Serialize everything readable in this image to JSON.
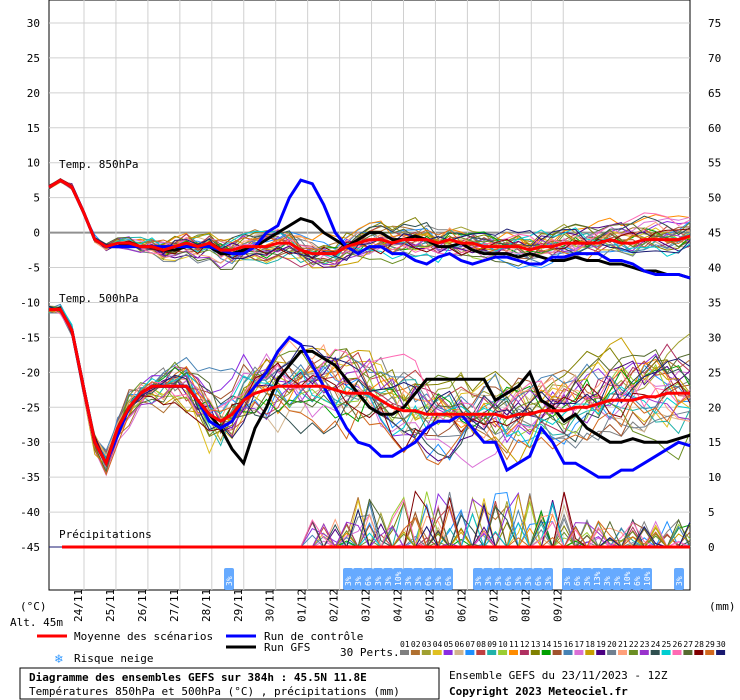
{
  "chart_data": {
    "type": "line",
    "title": "Diagramme des ensembles GEFS sur 384h : 45.5N 11.8E",
    "subtitle": "Températures 850hPa et 500hPa (°C) , précipitations (mm)",
    "run_info": "Ensemble GEFS du 23/11/2023 - 12Z",
    "copyright": "Copyright 2023 Meteociel.fr",
    "altitude": "Alt. 45m",
    "y_left_unit": "(°C)",
    "y_right_unit": "(mm)",
    "y_left_ticks": [
      "30",
      "25",
      "20",
      "15",
      "10",
      "5",
      "0",
      "-5",
      "-10",
      "-15",
      "-20",
      "-25",
      "-30",
      "-35",
      "-40",
      "-45"
    ],
    "y_right_ticks": [
      "75",
      "70",
      "65",
      "60",
      "55",
      "50",
      "45",
      "40",
      "35",
      "30",
      "25",
      "20",
      "15",
      "10",
      "5",
      "0"
    ],
    "ylim_left": [
      -45,
      30
    ],
    "ylim_right": [
      0,
      75
    ],
    "x_ticks": [
      "24/11",
      "25/11",
      "26/11",
      "27/11",
      "28/11",
      "29/11",
      "30/11",
      "01/12",
      "02/12",
      "03/12",
      "04/12",
      "05/12",
      "06/12",
      "07/12",
      "08/12",
      "09/12"
    ],
    "panel_labels": {
      "t850": "Temp. 850hPa",
      "t500": "Temp. 500hPa",
      "precip": "Précipitations"
    },
    "series": [
      {
        "name": "Moyenne des scénarios",
        "color": "#ff0000",
        "t850": [
          6.5,
          7.5,
          6.5,
          3,
          -1,
          -2,
          -1.5,
          -1.5,
          -2,
          -2,
          -2.5,
          -2,
          -1.5,
          -2,
          -1.5,
          -2.5,
          -2.5,
          -2,
          -2,
          -2,
          -1.5,
          -1.5,
          -2.5,
          -3,
          -3,
          -3,
          -2,
          -1.5,
          -1,
          -1,
          -1.5,
          -1,
          -1,
          -1,
          -1.5,
          -1,
          -1.5,
          -1.5,
          -2,
          -2,
          -2,
          -2,
          -2.5,
          -2,
          -2,
          -1.5,
          -1.5,
          -1.5,
          -1.5,
          -1,
          -1.5,
          -1.5,
          -1,
          -1,
          -1,
          -1,
          -0.5
        ],
        "t500": [
          -11,
          -11,
          -14,
          -22,
          -30,
          -33,
          -28,
          -25,
          -23,
          -22,
          -22,
          -22,
          -22,
          -24,
          -26,
          -27,
          -26,
          -24,
          -23,
          -22.5,
          -22,
          -22,
          -22,
          -22,
          -22,
          -22.5,
          -23,
          -23,
          -23,
          -24,
          -25,
          -25.5,
          -25.5,
          -26,
          -26,
          -26,
          -26,
          -26,
          -26,
          -26,
          -26.5,
          -26,
          -26,
          -25.5,
          -25.5,
          -25.5,
          -25,
          -25,
          -24.5,
          -24,
          -24,
          -24,
          -23.5,
          -23.5,
          -23,
          -23,
          -23
        ]
      },
      {
        "name": "Run de contrôle",
        "color": "#0000ff",
        "t850": [
          6.5,
          7.5,
          6.5,
          3,
          -1,
          -2,
          -2,
          -2,
          -2,
          -2,
          -2,
          -2,
          -2,
          -2,
          -2,
          -2.5,
          -3,
          -3,
          -2,
          0,
          1,
          5,
          7.5,
          7,
          4,
          0,
          -2,
          -3,
          -2,
          -2,
          -3,
          -3,
          -4,
          -4.5,
          -3.5,
          -3,
          -4,
          -4.5,
          -4,
          -3.5,
          -3.5,
          -4,
          -4.5,
          -4.5,
          -3.5,
          -3.5,
          -3,
          -3,
          -3,
          -4,
          -4,
          -4.5,
          -5.5,
          -6,
          -6,
          -6,
          -6.5
        ],
        "t500": [
          -11,
          -11,
          -14,
          -22,
          -30,
          -33,
          -29,
          -25,
          -23,
          -22,
          -22,
          -22,
          -22,
          -24,
          -27,
          -28,
          -27,
          -24,
          -22,
          -20,
          -17,
          -15,
          -16,
          -19,
          -22,
          -25,
          -28,
          -30,
          -30.5,
          -32,
          -32,
          -31,
          -30,
          -28,
          -27,
          -27,
          -26,
          -28,
          -30,
          -30,
          -34,
          -33,
          -32,
          -28,
          -30,
          -33,
          -33,
          -34,
          -35,
          -35,
          -34,
          -34,
          -33,
          -32,
          -31,
          -30,
          -30.5
        ]
      },
      {
        "name": "Run GFS",
        "color": "#000000",
        "t850": [
          6.5,
          7.5,
          6.5,
          3,
          -1,
          -2,
          -2,
          -1.5,
          -2,
          -2,
          -2.5,
          -2.5,
          -2,
          -2,
          -2,
          -3,
          -3,
          -2.5,
          -2,
          -1,
          0,
          1,
          2,
          1.5,
          0,
          -1,
          -2,
          -1,
          0,
          0,
          -1,
          -1,
          -0.5,
          -1,
          -2,
          -2,
          -1.5,
          -2.5,
          -3,
          -3,
          -3,
          -3.5,
          -3,
          -3.5,
          -4,
          -4,
          -3.5,
          -4,
          -4,
          -4.5,
          -4.5,
          -5,
          -5.5,
          -5.5,
          -6,
          -6,
          -6.5
        ],
        "t500": [
          -11,
          -11,
          -14,
          -22,
          -30,
          -33,
          -28,
          -25,
          -23,
          -22,
          -22,
          -22,
          -22,
          -24,
          -26,
          -28,
          -31,
          -33,
          -28,
          -25,
          -21,
          -19,
          -17,
          -17,
          -18,
          -19,
          -21,
          -23,
          -25,
          -26,
          -26,
          -25,
          -23,
          -21,
          -21,
          -21,
          -21,
          -21,
          -21,
          -24,
          -23,
          -22,
          -20,
          -24,
          -25,
          -27,
          -26,
          -28,
          -29,
          -30,
          -30,
          -29.5,
          -30,
          -30,
          -30,
          -29.5,
          -29
        ]
      }
    ],
    "snow_risk": [
      {
        "x": "28/11",
        "values": [
          "3%"
        ]
      },
      {
        "x": "01/12-03/12",
        "values": [
          "3%",
          "3%",
          "6%",
          "3%",
          "3%",
          "10%",
          "3%",
          "3%",
          "6%",
          "3%",
          "6%"
        ]
      },
      {
        "x": "04/12-05/12",
        "values": [
          "3%",
          "3%",
          "3%",
          "6%",
          "3%",
          "3%",
          "6%",
          "3%"
        ]
      },
      {
        "x": "06/12-08/12",
        "values": [
          "3%",
          "6%",
          "3%",
          "13%",
          "3%",
          "3%",
          "10%",
          "6%",
          "10%"
        ]
      },
      {
        "x": "09/12",
        "values": [
          "3%"
        ]
      }
    ],
    "legend": {
      "mean": "Moyenne des scénarios",
      "control": "Run de contrôle",
      "gfs": "Run GFS",
      "snow": "Risque neige",
      "perts": "30 Perts.",
      "pert_numbers": [
        "01",
        "02",
        "03",
        "04",
        "05",
        "06",
        "07",
        "08",
        "09",
        "10",
        "11",
        "12",
        "13",
        "14",
        "15",
        "16",
        "17",
        "18",
        "19",
        "20",
        "21",
        "22",
        "23",
        "24",
        "25",
        "26",
        "27",
        "28",
        "29",
        "30"
      ],
      "pert_colors": [
        "#7f7f7f",
        "#b07030",
        "#a0a030",
        "#e0c020",
        "#8a2be2",
        "#d2b48c",
        "#1e90ff",
        "#c04040",
        "#20b2aa",
        "#9acd32",
        "#ff8c00",
        "#b03060",
        "#808000",
        "#00a000",
        "#a0522d",
        "#4682b4",
        "#da70d6",
        "#c8a000",
        "#4b0082",
        "#708090",
        "#ffa07a",
        "#6b8e23",
        "#9932cc",
        "#2f4f4f",
        "#00ced1",
        "#ff69b4",
        "#556b2f",
        "#800000",
        "#d2691e",
        "#191970"
      ]
    },
    "ensemble_seed": 20231123
  }
}
